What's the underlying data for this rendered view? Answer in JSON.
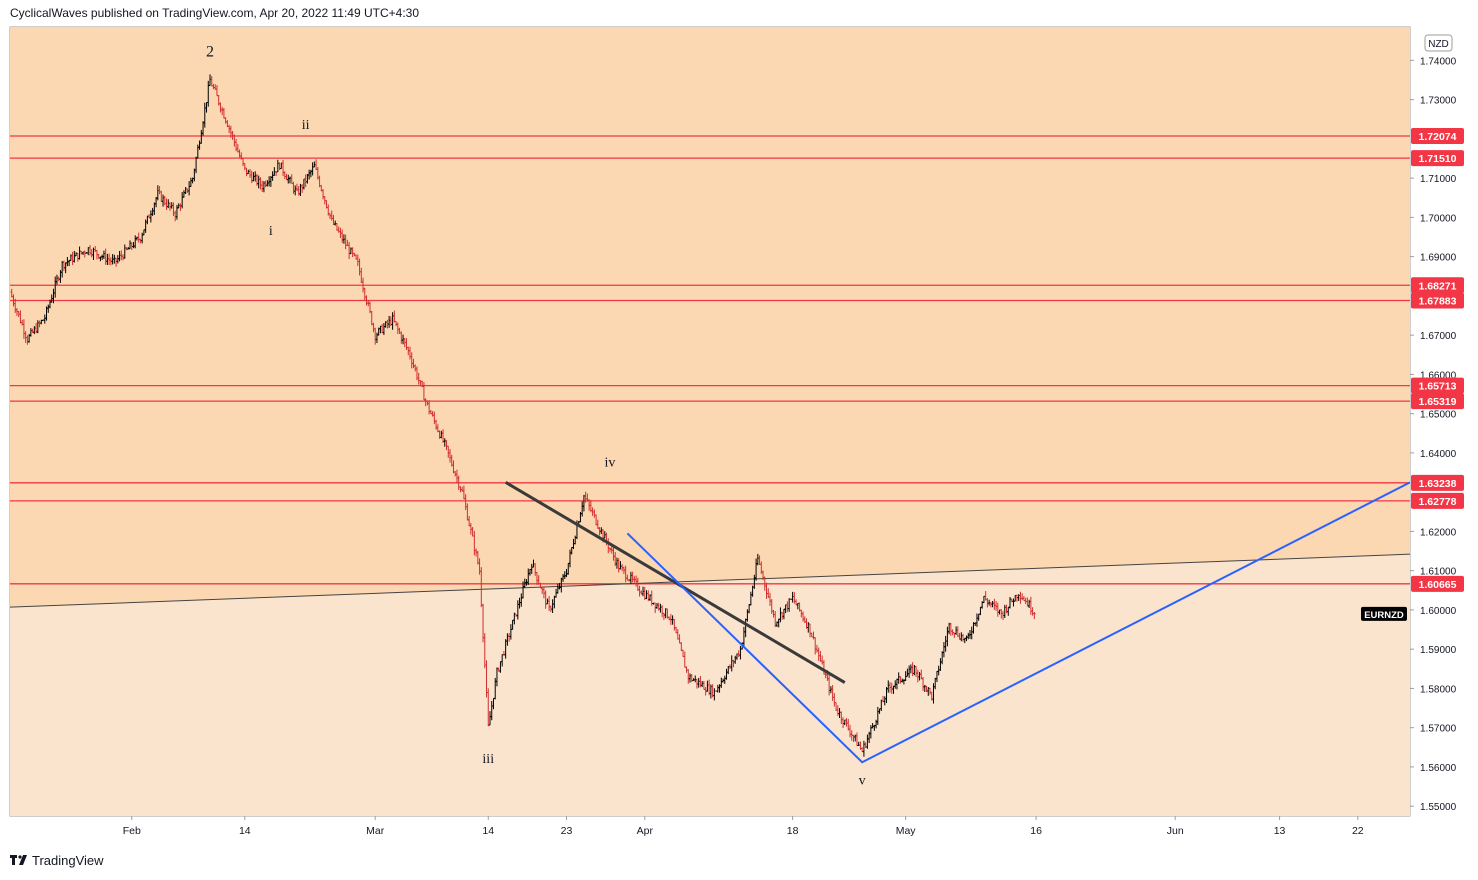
{
  "header": {
    "publisher_text": "CyclicalWaves published on TradingView.com, Apr 20, 2022 11:49 UTC+4:30"
  },
  "footer": {
    "brand": "TradingView"
  },
  "colors": {
    "upper_zone": "#fbd8b2",
    "lower_zone": "#fbe4cd",
    "level_line": "#f23645",
    "trendline_dark": "#3a3a3a",
    "projection_blue": "#2962ff",
    "candle": "#000000",
    "candle_down": "#d22e2e"
  },
  "chart_data": {
    "type": "candlestick",
    "symbol": "EURNZD",
    "currency": "NZD",
    "y_axis": {
      "ticks": [
        "1.74000",
        "1.73000",
        "1.71000",
        "1.70000",
        "1.69000",
        "1.67000",
        "1.66000",
        "1.65000",
        "1.64000",
        "1.62000",
        "1.61000",
        "1.60000",
        "1.59000",
        "1.58000",
        "1.57000",
        "1.56000",
        "1.55000"
      ],
      "range": [
        1.5475,
        1.7485
      ]
    },
    "x_axis": {
      "ticks": [
        "Feb",
        "14",
        "Mar",
        "14",
        "23",
        "Apr",
        "18",
        "May",
        "16",
        "Jun",
        "13",
        "22"
      ],
      "start": "2022-01-18",
      "end": "2022-06-28"
    },
    "levels": [
      {
        "label": "1.72074",
        "value": 1.72074
      },
      {
        "label": "1.71510",
        "value": 1.7151
      },
      {
        "label": "1.68271",
        "value": 1.68271
      },
      {
        "label": "1.67883",
        "value": 1.67883
      },
      {
        "label": "1.65713",
        "value": 1.65713
      },
      {
        "label": "1.65319",
        "value": 1.65319
      },
      {
        "label": "1.63238",
        "value": 1.63238
      },
      {
        "label": "1.62778",
        "value": 1.62778
      },
      {
        "label": "1.60665",
        "value": 1.60665
      }
    ],
    "shaded_boundary": {
      "from": {
        "date": "2022-01-18",
        "value": 1.6007
      },
      "to": {
        "date": "2022-06-28",
        "value": 1.6142
      }
    },
    "trendline": {
      "from": {
        "date": "2022-03-16",
        "value": 1.6325
      },
      "to": {
        "date": "2022-04-24",
        "value": 1.5815
      }
    },
    "projection_path": [
      {
        "date": "2022-03-30",
        "value": 1.6195
      },
      {
        "date": "2022-04-26",
        "value": 1.5612
      },
      {
        "date": "2022-06-28",
        "value": 1.6325
      }
    ],
    "price_path": [
      {
        "date": "2022-01-18",
        "value": 1.681
      },
      {
        "date": "2022-01-20",
        "value": 1.669
      },
      {
        "date": "2022-01-22",
        "value": 1.6745
      },
      {
        "date": "2022-01-24",
        "value": 1.688
      },
      {
        "date": "2022-01-27",
        "value": 1.692
      },
      {
        "date": "2022-01-30",
        "value": 1.6885
      },
      {
        "date": "2022-02-02",
        "value": 1.695
      },
      {
        "date": "2022-02-04",
        "value": 1.706
      },
      {
        "date": "2022-02-06",
        "value": 1.701
      },
      {
        "date": "2022-02-08",
        "value": 1.71
      },
      {
        "date": "2022-02-10",
        "value": 1.735
      },
      {
        "date": "2022-02-12",
        "value": 1.724
      },
      {
        "date": "2022-02-14",
        "value": 1.712
      },
      {
        "date": "2022-02-16",
        "value": 1.708
      },
      {
        "date": "2022-02-18",
        "value": 1.7135
      },
      {
        "date": "2022-02-20",
        "value": 1.706
      },
      {
        "date": "2022-02-22",
        "value": 1.713
      },
      {
        "date": "2022-02-24",
        "value": 1.699
      },
      {
        "date": "2022-02-27",
        "value": 1.688
      },
      {
        "date": "2022-03-01",
        "value": 1.67
      },
      {
        "date": "2022-03-03",
        "value": 1.674
      },
      {
        "date": "2022-03-05",
        "value": 1.665
      },
      {
        "date": "2022-03-07",
        "value": 1.652
      },
      {
        "date": "2022-03-09",
        "value": 1.642
      },
      {
        "date": "2022-03-11",
        "value": 1.63
      },
      {
        "date": "2022-03-13",
        "value": 1.61
      },
      {
        "date": "2022-03-14",
        "value": 1.57
      },
      {
        "date": "2022-03-15",
        "value": 1.584
      },
      {
        "date": "2022-03-17",
        "value": 1.598
      },
      {
        "date": "2022-03-19",
        "value": 1.612
      },
      {
        "date": "2022-03-21",
        "value": 1.6
      },
      {
        "date": "2022-03-23",
        "value": 1.61
      },
      {
        "date": "2022-03-25",
        "value": 1.629
      },
      {
        "date": "2022-03-27",
        "value": 1.62
      },
      {
        "date": "2022-03-29",
        "value": 1.611
      },
      {
        "date": "2022-04-01",
        "value": 1.604
      },
      {
        "date": "2022-04-04",
        "value": 1.598
      },
      {
        "date": "2022-04-06",
        "value": 1.583
      },
      {
        "date": "2022-04-09",
        "value": 1.579
      },
      {
        "date": "2022-04-12",
        "value": 1.59
      },
      {
        "date": "2022-04-14",
        "value": 1.613
      },
      {
        "date": "2022-04-16",
        "value": 1.597
      },
      {
        "date": "2022-04-18",
        "value": 1.603
      },
      {
        "date": "2022-04-20",
        "value": 1.595
      },
      {
        "date": "2022-04-23",
        "value": 1.575
      },
      {
        "date": "2022-04-26",
        "value": 1.564
      },
      {
        "date": "2022-04-29",
        "value": 1.58
      },
      {
        "date": "2022-05-02",
        "value": 1.585
      },
      {
        "date": "2022-05-04",
        "value": 1.578
      },
      {
        "date": "2022-05-06",
        "value": 1.596
      },
      {
        "date": "2022-05-08",
        "value": 1.592
      },
      {
        "date": "2022-05-10",
        "value": 1.603
      },
      {
        "date": "2022-05-12",
        "value": 1.599
      },
      {
        "date": "2022-05-14",
        "value": 1.6045
      },
      {
        "date": "2022-05-16",
        "value": 1.599
      }
    ],
    "wave_labels": [
      {
        "text": "2",
        "date": "2022-02-10",
        "value": 1.741
      },
      {
        "text": "ii",
        "date": "2022-02-21",
        "value": 1.7225
      },
      {
        "text": "i",
        "date": "2022-02-17",
        "value": 1.6955
      },
      {
        "text": "iv",
        "date": "2022-03-28",
        "value": 1.6365
      },
      {
        "text": "iii",
        "date": "2022-03-14",
        "value": 1.561
      },
      {
        "text": "v",
        "date": "2022-04-26",
        "value": 1.5555
      }
    ]
  }
}
